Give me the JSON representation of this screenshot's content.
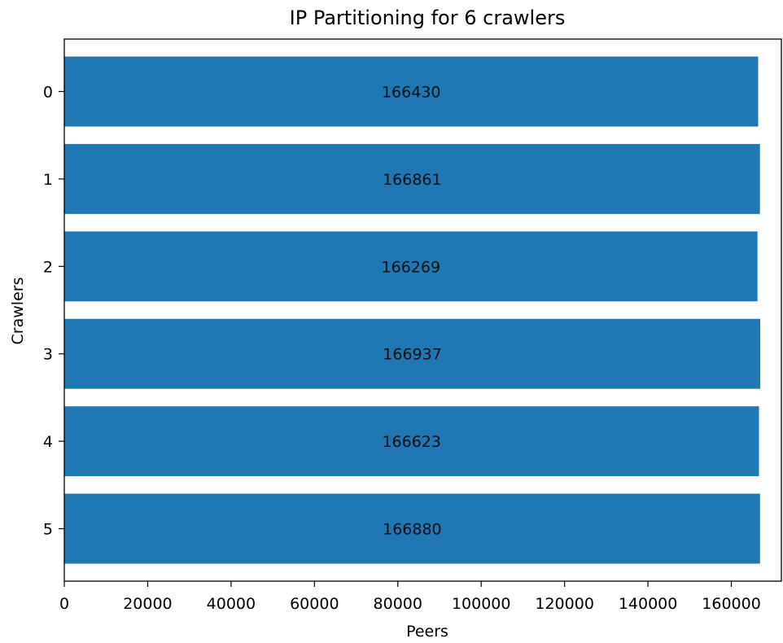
{
  "chart_data": {
    "type": "bar",
    "orientation": "horizontal",
    "title": "IP Partitioning for 6 crawlers",
    "xlabel": "Peers",
    "ylabel": "Crawlers",
    "categories": [
      "0",
      "1",
      "2",
      "3",
      "4",
      "5"
    ],
    "values": [
      166430,
      166861,
      166269,
      166937,
      166623,
      166880
    ],
    "data_labels": [
      "166430",
      "166861",
      "166269",
      "166937",
      "166623",
      "166880"
    ],
    "xlim": [
      0,
      172000
    ],
    "xticks": [
      0,
      20000,
      40000,
      60000,
      80000,
      100000,
      120000,
      140000,
      160000
    ],
    "xtick_labels": [
      "0",
      "20000",
      "40000",
      "60000",
      "80000",
      "100000",
      "120000",
      "140000",
      "160000"
    ],
    "bar_color": "#1f77b4",
    "grid": false,
    "legend": "none"
  }
}
